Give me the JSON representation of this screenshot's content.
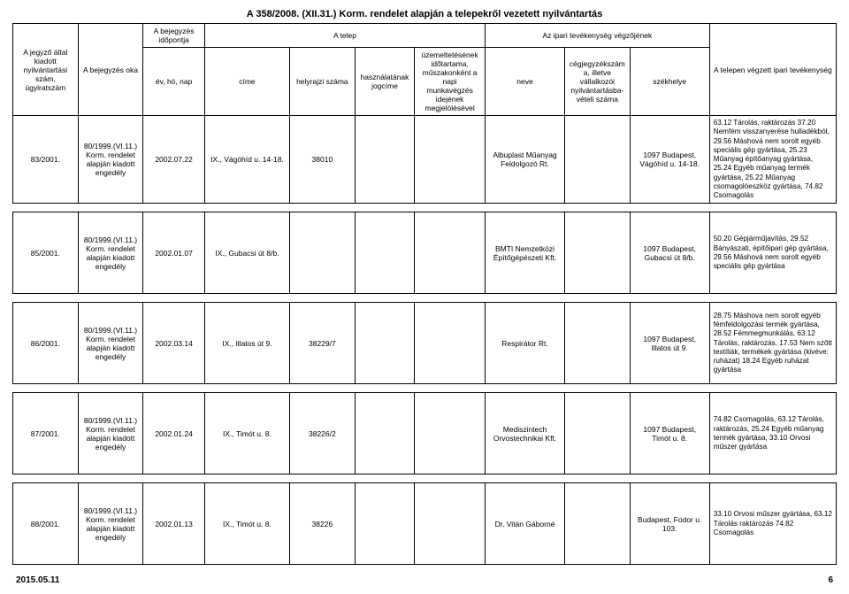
{
  "title": "A 358/2008. (XII.31.) Korm. rendelet alapján a telepekről vezetett nyilvántartás",
  "headers": {
    "col1": "A jegyző által kiadott nyilvántartási szám, ügyiratszám",
    "col2": "A bejegyzés oka",
    "group_time": "A bejegyzés időpontja",
    "col3": "év, hó, nap",
    "group_telep": "A telep",
    "col4": "címe",
    "col5": "helyrajzi száma",
    "col6": "használatának jogcíme",
    "col7": "üzemeltetésének időtartama, műszakonként a napi munkavégzés idejének megjelölésével",
    "group_ipari": "Az ipari tevékenység végzőjének",
    "col8": "neve",
    "col9": "cégjegyzékszáma, illetve vállalkozói nyilvántartásba-vételi száma",
    "col10": "székhelye",
    "col11": "A telepen végzett ipari tevékenység"
  },
  "rows": [
    {
      "c1": "83/2001.",
      "c2": "80/1999.(VI.11.) Korm. rendelet alapján kiadott engedély",
      "c3": "2002.07.22",
      "c4": "IX., Vágóhíd u. 14-18.",
      "c5": "38010",
      "c6": "",
      "c7": "",
      "c8": "Albuplast Műanyag Feldolgozó Rt.",
      "c9": "",
      "c10": "1097 Budapest, Vágóhíd u. 14-18.",
      "c11": "63.12 Tárolás, raktározás 37.20 Nemfém visszanyerése hulladékból, 29.56 Máshová nem sorolt egyéb speciális gép gyártása, 25.23 Műanyag építőanyag gyártása, 25.24 Egyéb műanyag termék gyártása, 25.22 Műanyag csomagolóeszköz gyártása, 74.82 Csomagolás"
    },
    {
      "c1": "85/2001.",
      "c2": "80/1999.(VI.11.) Korm. rendelet alapján kiadott engedély",
      "c3": "2002.01.07",
      "c4": "IX., Gubacsi út 8/b.",
      "c5": "",
      "c6": "",
      "c7": "",
      "c8": "BMTI Nemzetközi Építőgépészeti Kft.",
      "c9": "",
      "c10": "1097 Budapest, Gubacsi út 8/b.",
      "c11": "50.20 Gépjárműjavítás, 29.52 Bányászati, építőipari gép gyártása, 29.56 Máshová nem sorolt egyéb speciális gép gyártása"
    },
    {
      "c1": "86/2001.",
      "c2": "80/1999.(VI.11.) Korm. rendelet alapján kiadott engedély",
      "c3": "2002.03.14",
      "c4": "IX., Illatos út 9.",
      "c5": "38229/7",
      "c6": "",
      "c7": "",
      "c8": "Respirátor Rt.",
      "c9": "",
      "c10": "1097 Budapest, Illatos út 9.",
      "c11": "28.75 Máshova nem sorolt egyéb fémfeldolgozási termék gyártása, 28.52 Fémmegmunkálás, 63.12 Tárolás, raktározás, 17.53 Nem szőtt textíliák, termékek gyártása (kivéve: ruházat) 18.24 Egyéb ruházat gyártása"
    },
    {
      "c1": "87/2001.",
      "c2": "80/1999.(VI.11.) Korm. rendelet alapján kiadott engedély",
      "c3": "2002.01.24",
      "c4": "IX., Timót u. 8.",
      "c5": "38226/2",
      "c6": "",
      "c7": "",
      "c8": "Mediszintech Orvostechnikai Kft.",
      "c9": "",
      "c10": "1097 Budapest, Timót u. 8.",
      "c11": "74.82 Csomagolás, 63.12 Tárolás, raktározás, 25.24 Egyéb műanyag termék gyártása, 33.10 Orvosi műszer gyártása"
    },
    {
      "c1": "88/2001.",
      "c2": "80/1999.(VI.11.) Korm. rendelet alapján kiadott engedély",
      "c3": "2002.01.13",
      "c4": "IX., Timót u. 8.",
      "c5": "38226",
      "c6": "",
      "c7": "",
      "c8": "Dr. Vitán Gáborné",
      "c9": "",
      "c10": "Budapest, Fodor u. 103.",
      "c11": "33.10 Orvosi műszer gyártása, 63.12 Tárolás raktározás 74.82 Csomagolás"
    }
  ],
  "footer": {
    "date": "2015.05.11",
    "page": "6"
  }
}
